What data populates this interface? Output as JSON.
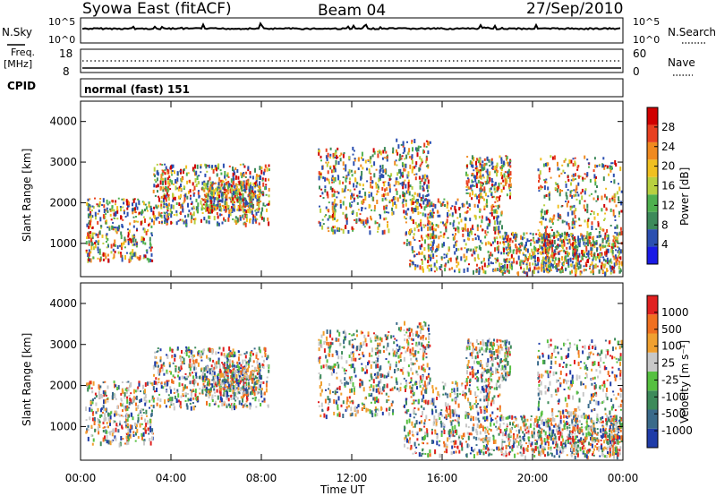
{
  "header": {
    "station": "Syowa East (fitACF)",
    "beam": "Beam 04",
    "date": "27/Sep/2010"
  },
  "noise_panel": {
    "left_label": "N.Sky",
    "right_label": "N.Search",
    "left_ticks": [
      "10^5",
      "10^0"
    ],
    "right_ticks": [
      "10^5",
      "10^0"
    ]
  },
  "freq_panel": {
    "left_label_1": "Freq.",
    "left_label_2": "[MHz]",
    "right_label": "Nave",
    "left_ticks": [
      "18",
      "8"
    ],
    "right_ticks": [
      "60",
      "0"
    ]
  },
  "cpid_panel": {
    "label": "CPID",
    "value": "normal (fast) 151"
  },
  "chart_data": [
    {
      "type": "heatmap",
      "name": "power",
      "ylabel": "Slant Range [km]",
      "xlabel": "",
      "ylim": [
        180,
        4500
      ],
      "yticks": [
        "1000",
        "2000",
        "3000",
        "4000"
      ],
      "colorbar": {
        "label": "Power [dB]",
        "ticks": [
          "4",
          "8",
          "12",
          "16",
          "20",
          "24",
          "28"
        ],
        "colors": [
          "#1a1ae6",
          "#2b4fb0",
          "#3d8a5a",
          "#4fb04f",
          "#b8d040",
          "#f0c020",
          "#f08a20",
          "#e84020",
          "#d00000"
        ]
      }
    },
    {
      "type": "heatmap",
      "name": "velocity",
      "ylabel": "Slant Range [km]",
      "xlabel": "Time UT",
      "ylim": [
        180,
        4500
      ],
      "yticks": [
        "1000",
        "2000",
        "3000",
        "4000"
      ],
      "xticks": [
        "00:00",
        "04:00",
        "08:00",
        "12:00",
        "16:00",
        "20:00",
        "00:00"
      ],
      "colorbar": {
        "label": "Velocity [m s⁻¹]",
        "ticks": [
          "1000",
          "500",
          "100",
          "25",
          "-25",
          "-100",
          "-500",
          "-1000"
        ],
        "colors": [
          "#1f3ca8",
          "#3a6a8a",
          "#3d8a5a",
          "#56c040",
          "#c8c8c8",
          "#f0a030",
          "#f07020",
          "#e02020"
        ]
      }
    }
  ]
}
